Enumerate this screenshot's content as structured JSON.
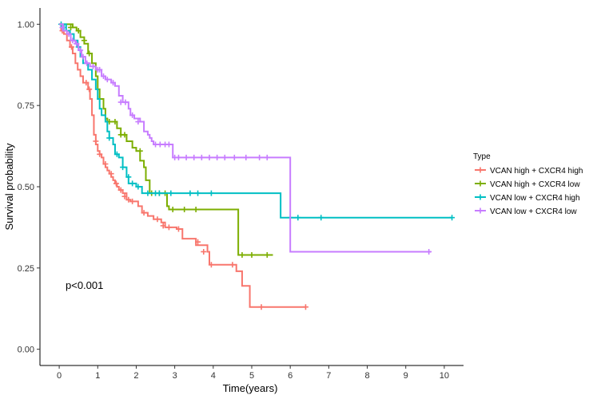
{
  "chart_data": {
    "type": "line",
    "subtype": "kaplan-meier",
    "xlabel": "Time(years)",
    "ylabel": "Survival probability",
    "xlim": [
      -0.5,
      10.5
    ],
    "ylim": [
      -0.05,
      1.05
    ],
    "xticks": [
      0,
      1,
      2,
      3,
      4,
      5,
      6,
      7,
      8,
      9,
      10
    ],
    "yticks": [
      0.0,
      0.25,
      0.5,
      0.75,
      1.0
    ],
    "ytick_labels": [
      "0.00",
      "0.25",
      "0.50",
      "0.75",
      "1.00"
    ],
    "grid": false,
    "annotation": {
      "text": "p<0.001",
      "x": 0.2,
      "y": 0.2
    },
    "legend": {
      "title": "Type",
      "placement": "right"
    },
    "series": [
      {
        "name": "VCAN high + CXCR4 high",
        "color": "#F8766D",
        "steps": [
          [
            0,
            1.0
          ],
          [
            0.05,
            0.98
          ],
          [
            0.12,
            0.97
          ],
          [
            0.2,
            0.95
          ],
          [
            0.28,
            0.93
          ],
          [
            0.35,
            0.91
          ],
          [
            0.42,
            0.88
          ],
          [
            0.48,
            0.86
          ],
          [
            0.55,
            0.84
          ],
          [
            0.62,
            0.82
          ],
          [
            0.75,
            0.8
          ],
          [
            0.8,
            0.77
          ],
          [
            0.85,
            0.72
          ],
          [
            0.9,
            0.66
          ],
          [
            0.95,
            0.63
          ],
          [
            1.0,
            0.61
          ],
          [
            1.05,
            0.6
          ],
          [
            1.1,
            0.59
          ],
          [
            1.15,
            0.57
          ],
          [
            1.2,
            0.56
          ],
          [
            1.25,
            0.55
          ],
          [
            1.3,
            0.54
          ],
          [
            1.35,
            0.53
          ],
          [
            1.4,
            0.52
          ],
          [
            1.45,
            0.51
          ],
          [
            1.5,
            0.5
          ],
          [
            1.55,
            0.49
          ],
          [
            1.65,
            0.48
          ],
          [
            1.75,
            0.46
          ],
          [
            1.85,
            0.455
          ],
          [
            2.05,
            0.44
          ],
          [
            2.15,
            0.42
          ],
          [
            2.3,
            0.41
          ],
          [
            2.45,
            0.4
          ],
          [
            2.65,
            0.39
          ],
          [
            2.75,
            0.375
          ],
          [
            3.05,
            0.37
          ],
          [
            3.2,
            0.34
          ],
          [
            3.55,
            0.32
          ],
          [
            3.85,
            0.3
          ],
          [
            3.9,
            0.26
          ],
          [
            4.55,
            0.26
          ],
          [
            4.6,
            0.24
          ],
          [
            4.75,
            0.195
          ],
          [
            4.95,
            0.13
          ],
          [
            6.4,
            0.13
          ]
        ],
        "censor": [
          [
            0.08,
            0.98
          ],
          [
            0.32,
            0.93
          ],
          [
            0.7,
            0.82
          ],
          [
            0.78,
            0.8
          ],
          [
            0.95,
            0.64
          ],
          [
            1.05,
            0.6
          ],
          [
            1.2,
            0.57
          ],
          [
            1.35,
            0.54
          ],
          [
            1.48,
            0.51
          ],
          [
            1.6,
            0.49
          ],
          [
            1.7,
            0.47
          ],
          [
            1.8,
            0.46
          ],
          [
            1.9,
            0.455
          ],
          [
            2.2,
            0.42
          ],
          [
            2.55,
            0.4
          ],
          [
            2.7,
            0.38
          ],
          [
            2.85,
            0.375
          ],
          [
            3.1,
            0.37
          ],
          [
            3.6,
            0.33
          ],
          [
            3.75,
            0.3
          ],
          [
            3.95,
            0.26
          ],
          [
            4.5,
            0.26
          ],
          [
            5.25,
            0.13
          ],
          [
            6.4,
            0.13
          ]
        ]
      },
      {
        "name": "VCAN high + CXCR4 low",
        "color": "#7CAE00",
        "steps": [
          [
            0,
            1.0
          ],
          [
            0.35,
            0.99
          ],
          [
            0.45,
            0.98
          ],
          [
            0.55,
            0.96
          ],
          [
            0.65,
            0.94
          ],
          [
            0.75,
            0.91
          ],
          [
            0.85,
            0.88
          ],
          [
            0.95,
            0.84
          ],
          [
            1.0,
            0.8
          ],
          [
            1.05,
            0.77
          ],
          [
            1.15,
            0.74
          ],
          [
            1.2,
            0.71
          ],
          [
            1.25,
            0.7
          ],
          [
            1.5,
            0.68
          ],
          [
            1.6,
            0.66
          ],
          [
            1.75,
            0.64
          ],
          [
            1.9,
            0.62
          ],
          [
            2.0,
            0.61
          ],
          [
            2.1,
            0.58
          ],
          [
            2.2,
            0.56
          ],
          [
            2.25,
            0.52
          ],
          [
            2.35,
            0.48
          ],
          [
            2.75,
            0.48
          ],
          [
            2.8,
            0.44
          ],
          [
            2.85,
            0.43
          ],
          [
            4.6,
            0.43
          ],
          [
            4.65,
            0.29
          ],
          [
            5.55,
            0.29
          ]
        ],
        "censor": [
          [
            0.3,
            0.99
          ],
          [
            0.5,
            0.98
          ],
          [
            0.65,
            0.95
          ],
          [
            0.78,
            0.91
          ],
          [
            1.05,
            0.77
          ],
          [
            1.3,
            0.7
          ],
          [
            1.45,
            0.7
          ],
          [
            1.6,
            0.66
          ],
          [
            1.7,
            0.66
          ],
          [
            2.1,
            0.61
          ],
          [
            2.4,
            0.48
          ],
          [
            2.6,
            0.48
          ],
          [
            2.75,
            0.48
          ],
          [
            2.95,
            0.43
          ],
          [
            3.25,
            0.43
          ],
          [
            3.55,
            0.43
          ],
          [
            4.75,
            0.29
          ],
          [
            5.0,
            0.29
          ],
          [
            5.4,
            0.29
          ]
        ]
      },
      {
        "name": "VCAN low + CXCR4 high",
        "color": "#00BFC4",
        "steps": [
          [
            0,
            1.0
          ],
          [
            0.1,
            1.0
          ],
          [
            0.18,
            0.98
          ],
          [
            0.28,
            0.97
          ],
          [
            0.38,
            0.95
          ],
          [
            0.48,
            0.93
          ],
          [
            0.55,
            0.9
          ],
          [
            0.62,
            0.88
          ],
          [
            0.75,
            0.86
          ],
          [
            0.85,
            0.83
          ],
          [
            0.95,
            0.8
          ],
          [
            1.0,
            0.77
          ],
          [
            1.05,
            0.74
          ],
          [
            1.1,
            0.72
          ],
          [
            1.2,
            0.7
          ],
          [
            1.25,
            0.67
          ],
          [
            1.3,
            0.65
          ],
          [
            1.4,
            0.63
          ],
          [
            1.45,
            0.6
          ],
          [
            1.55,
            0.59
          ],
          [
            1.65,
            0.56
          ],
          [
            1.75,
            0.53
          ],
          [
            1.8,
            0.51
          ],
          [
            2.0,
            0.5
          ],
          [
            2.15,
            0.48
          ],
          [
            5.7,
            0.48
          ],
          [
            5.75,
            0.405
          ],
          [
            10.2,
            0.405
          ]
        ],
        "censor": [
          [
            0.05,
            1.0
          ],
          [
            0.12,
            0.99
          ],
          [
            0.5,
            0.93
          ],
          [
            1.3,
            0.65
          ],
          [
            1.5,
            0.6
          ],
          [
            1.65,
            0.56
          ],
          [
            1.8,
            0.53
          ],
          [
            1.9,
            0.51
          ],
          [
            2.05,
            0.5
          ],
          [
            2.3,
            0.48
          ],
          [
            2.5,
            0.48
          ],
          [
            2.6,
            0.48
          ],
          [
            2.9,
            0.48
          ],
          [
            3.4,
            0.48
          ],
          [
            3.6,
            0.48
          ],
          [
            3.95,
            0.48
          ],
          [
            6.0,
            0.405
          ],
          [
            6.2,
            0.405
          ],
          [
            6.8,
            0.405
          ],
          [
            10.2,
            0.405
          ]
        ]
      },
      {
        "name": "VCAN low + CXCR4 low",
        "color": "#C77CFF",
        "steps": [
          [
            0,
            1.0
          ],
          [
            0.1,
            0.98
          ],
          [
            0.2,
            0.97
          ],
          [
            0.3,
            0.95
          ],
          [
            0.42,
            0.94
          ],
          [
            0.5,
            0.92
          ],
          [
            0.58,
            0.9
          ],
          [
            0.68,
            0.88
          ],
          [
            0.8,
            0.87
          ],
          [
            0.95,
            0.86
          ],
          [
            1.1,
            0.84
          ],
          [
            1.2,
            0.83
          ],
          [
            1.35,
            0.82
          ],
          [
            1.45,
            0.81
          ],
          [
            1.55,
            0.78
          ],
          [
            1.65,
            0.76
          ],
          [
            1.8,
            0.74
          ],
          [
            1.85,
            0.72
          ],
          [
            1.95,
            0.71
          ],
          [
            2.1,
            0.7
          ],
          [
            2.2,
            0.67
          ],
          [
            2.3,
            0.66
          ],
          [
            2.35,
            0.65
          ],
          [
            2.4,
            0.64
          ],
          [
            2.45,
            0.63
          ],
          [
            2.95,
            0.59
          ],
          [
            5.95,
            0.59
          ],
          [
            6.0,
            0.3
          ],
          [
            9.65,
            0.3
          ]
        ],
        "censor": [
          [
            0.08,
            0.99
          ],
          [
            0.25,
            0.97
          ],
          [
            0.35,
            0.95
          ],
          [
            0.45,
            0.94
          ],
          [
            0.55,
            0.92
          ],
          [
            0.62,
            0.9
          ],
          [
            0.72,
            0.88
          ],
          [
            0.88,
            0.87
          ],
          [
            1.0,
            0.86
          ],
          [
            1.05,
            0.86
          ],
          [
            1.15,
            0.84
          ],
          [
            1.25,
            0.83
          ],
          [
            1.4,
            0.82
          ],
          [
            1.6,
            0.76
          ],
          [
            1.72,
            0.76
          ],
          [
            1.9,
            0.72
          ],
          [
            2.05,
            0.7
          ],
          [
            2.5,
            0.63
          ],
          [
            2.62,
            0.63
          ],
          [
            2.75,
            0.63
          ],
          [
            2.85,
            0.63
          ],
          [
            3.0,
            0.59
          ],
          [
            3.1,
            0.59
          ],
          [
            3.3,
            0.59
          ],
          [
            3.5,
            0.59
          ],
          [
            3.7,
            0.59
          ],
          [
            3.9,
            0.59
          ],
          [
            4.1,
            0.59
          ],
          [
            4.3,
            0.59
          ],
          [
            4.55,
            0.59
          ],
          [
            4.85,
            0.59
          ],
          [
            5.2,
            0.59
          ],
          [
            5.4,
            0.59
          ],
          [
            9.6,
            0.3
          ]
        ]
      }
    ]
  }
}
